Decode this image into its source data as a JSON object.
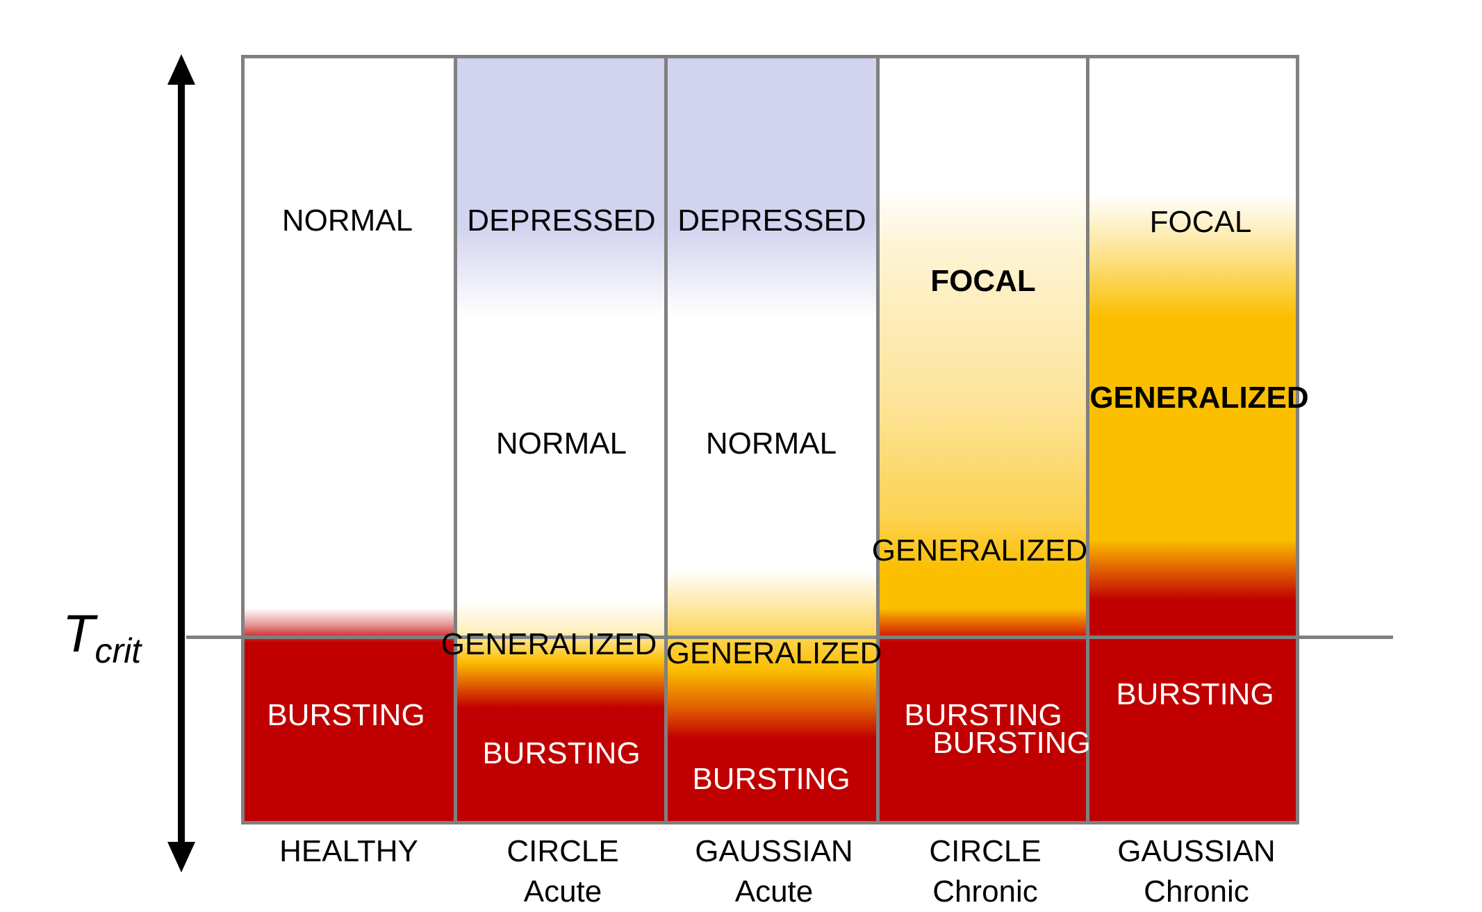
{
  "axis": {
    "threshold_label_main": "T",
    "threshold_label_sub": "crit"
  },
  "columns": [
    {
      "line1": "HEALTHY",
      "line2": "",
      "labels": [
        "NORMAL",
        "BURSTING"
      ]
    },
    {
      "line1": "CIRCLE",
      "line2": "Acute",
      "labels": [
        "DEPRESSED",
        "NORMAL",
        "GENERALIZED",
        "BURSTING"
      ]
    },
    {
      "line1": "GAUSSIAN",
      "line2": "Acute",
      "labels": [
        "DEPRESSED",
        "NORMAL",
        "GENERALIZED",
        "BURSTING"
      ]
    },
    {
      "line1": "CIRCLE",
      "line2": "Chronic",
      "labels": [
        "FOCAL",
        "GENERALIZED",
        "BURSTING",
        "BURSTING"
      ]
    },
    {
      "line1": "GAUSSIAN",
      "line2": "Chronic",
      "labels": [
        "FOCAL",
        "GENERALIZED",
        "BURSTING"
      ]
    }
  ],
  "colors": {
    "depressed": "#d1d3ef",
    "generalized": "#fbbf00",
    "bursting": "#c00000",
    "grid": "#808080"
  }
}
